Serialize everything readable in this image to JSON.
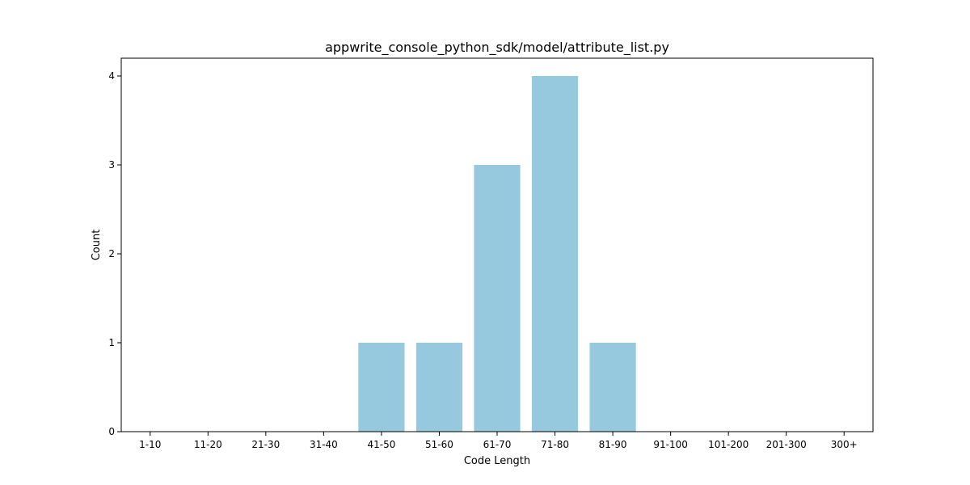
{
  "chart_data": {
    "type": "bar",
    "title": "appwrite_console_python_sdk/model/attribute_list.py",
    "xlabel": "Code Length",
    "ylabel": "Count",
    "categories": [
      "1-10",
      "11-20",
      "21-30",
      "31-40",
      "41-50",
      "51-60",
      "61-70",
      "71-80",
      "81-90",
      "91-100",
      "101-200",
      "201-300",
      "300+"
    ],
    "values": [
      0,
      0,
      0,
      0,
      1,
      1,
      3,
      4,
      1,
      0,
      0,
      0,
      0
    ],
    "ylim": [
      0,
      4.2
    ],
    "yticks": [
      0,
      1,
      2,
      3,
      4
    ],
    "bar_color": "#96c9dd",
    "grid": false,
    "legend": "none"
  }
}
